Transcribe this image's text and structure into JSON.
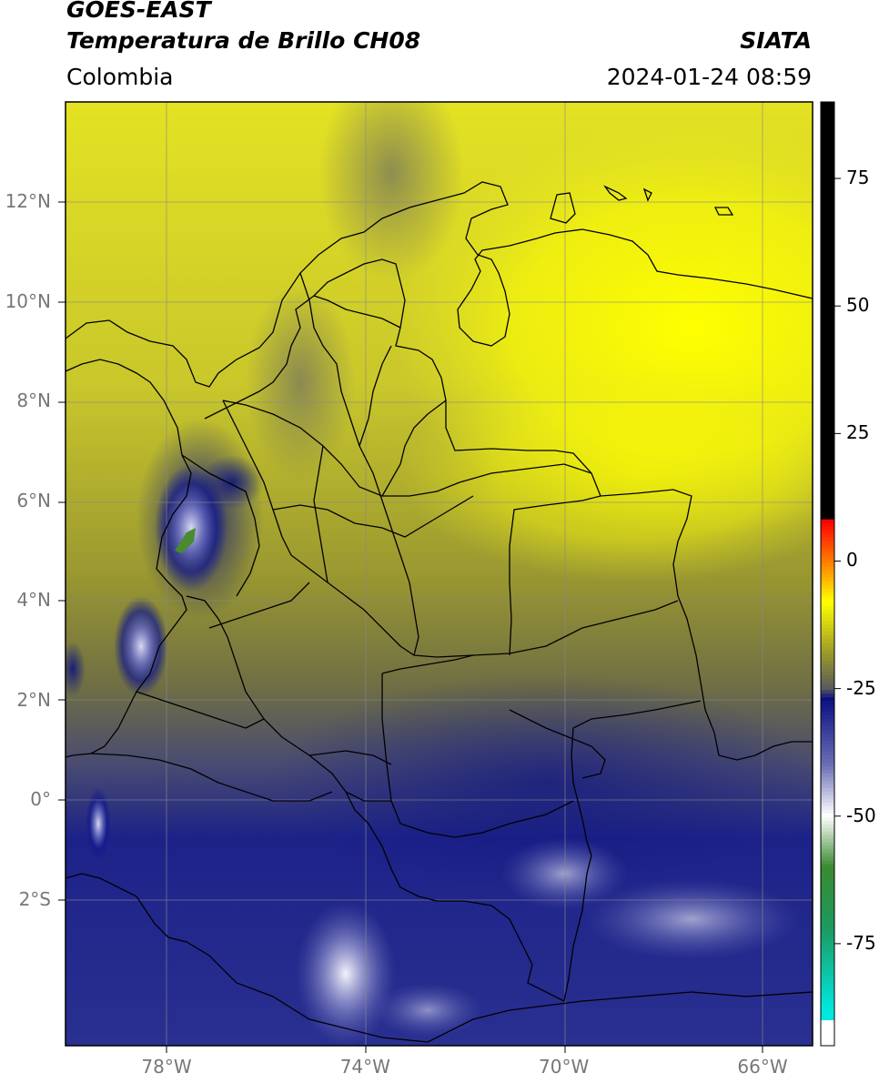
{
  "header": {
    "satellite": "GOES-EAST",
    "product": "Temperatura de Brillo CH08",
    "region": "Colombia",
    "agency": "SIATA",
    "timestamp": "2024-01-24 08:59"
  },
  "axes": {
    "lat_ticks": [
      {
        "value": 12,
        "label": "12°N"
      },
      {
        "value": 10,
        "label": "10°N"
      },
      {
        "value": 8,
        "label": "8°N"
      },
      {
        "value": 6,
        "label": "6°N"
      },
      {
        "value": 4,
        "label": "4°N"
      },
      {
        "value": 2,
        "label": "2°N"
      },
      {
        "value": 0,
        "label": "0°"
      },
      {
        "value": -2,
        "label": "2°S"
      }
    ],
    "lon_ticks": [
      {
        "value": -78,
        "label": "78°W"
      },
      {
        "value": -74,
        "label": "74°W"
      },
      {
        "value": -70,
        "label": "70°W"
      },
      {
        "value": -66,
        "label": "66°W"
      }
    ],
    "lat_range": [
      -5,
      14
    ],
    "lon_range": [
      -80,
      -65
    ]
  },
  "colorbar": {
    "range": [
      -95,
      90
    ],
    "ticks": [
      {
        "value": 75,
        "label": "75"
      },
      {
        "value": 50,
        "label": "50"
      },
      {
        "value": 25,
        "label": "25"
      },
      {
        "value": 0,
        "label": "0"
      },
      {
        "value": -25,
        "label": "-25"
      },
      {
        "value": -50,
        "label": "-50"
      },
      {
        "value": -75,
        "label": "-75"
      }
    ],
    "stops": [
      {
        "value": 90,
        "color": "#000000"
      },
      {
        "value": 8,
        "color": "#000000"
      },
      {
        "value": 7.9,
        "color": "#ff0000"
      },
      {
        "value": 0,
        "color": "#ff7a00"
      },
      {
        "value": -8,
        "color": "#ffff00"
      },
      {
        "value": -18,
        "color": "#9b9b2a"
      },
      {
        "value": -25,
        "color": "#5a5a5a"
      },
      {
        "value": -27,
        "color": "#0a1080"
      },
      {
        "value": -40,
        "color": "#6b6fb5"
      },
      {
        "value": -50,
        "color": "#ffffff"
      },
      {
        "value": -60,
        "color": "#3a8a30"
      },
      {
        "value": -72,
        "color": "#1c9a60"
      },
      {
        "value": -88,
        "color": "#00e8e0"
      },
      {
        "value": -90.1,
        "color": "#00e8e0"
      },
      {
        "value": -90.2,
        "color": "#ffffff"
      },
      {
        "value": -95,
        "color": "#ffffff"
      }
    ]
  }
}
